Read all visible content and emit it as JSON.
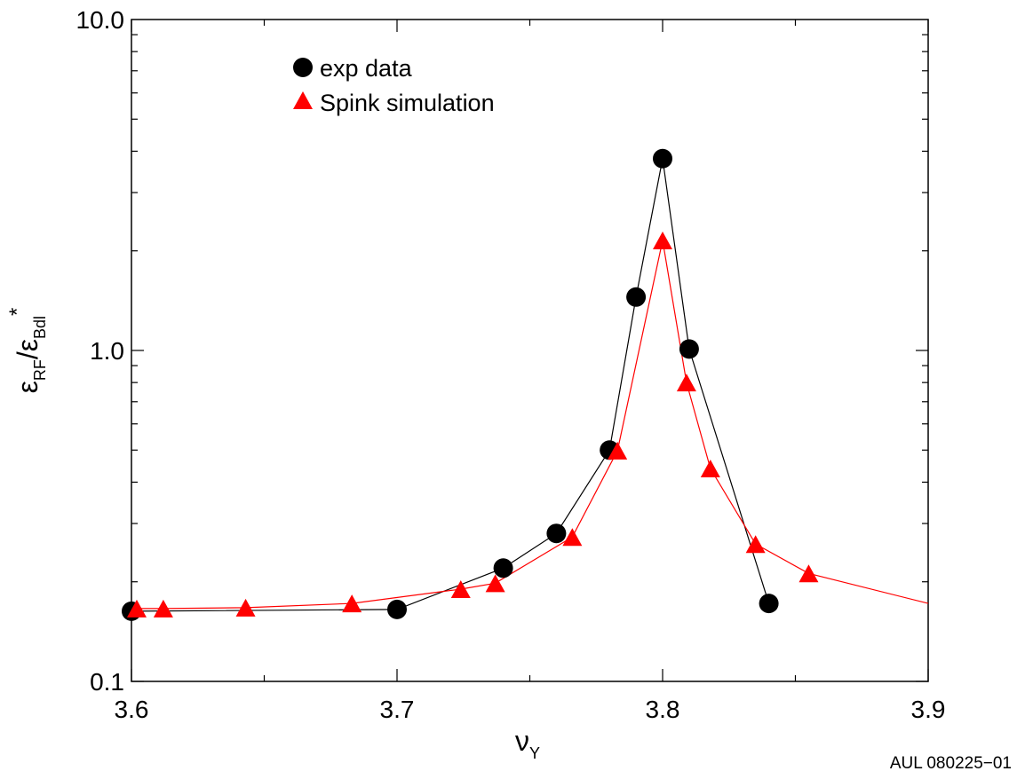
{
  "chart_data": {
    "type": "line",
    "x_axis": {
      "symbol": "ν",
      "subscript": "Y",
      "range": [
        3.6,
        3.9
      ],
      "ticks": [
        3.6,
        3.7,
        3.8,
        3.9
      ],
      "tick_labels": [
        "3.6",
        "3.7",
        "3.8",
        "3.9"
      ]
    },
    "y_axis": {
      "scale": "log",
      "range": [
        0.1,
        10.0
      ],
      "ticks": [
        0.1,
        1.0,
        10.0
      ],
      "tick_labels": [
        "0.1",
        "1.0",
        "10.0"
      ],
      "label_parts": {
        "eps1": "ε",
        "sub1": "RF",
        "slash": "/",
        "eps2": "ε",
        "sub2": "Bdl",
        "sup": "*"
      }
    },
    "legend_position": "top-left",
    "grid": false,
    "series": [
      {
        "name": "exp data",
        "marker": "circle",
        "color": "#000000",
        "x": [
          3.6,
          3.7,
          3.74,
          3.76,
          3.78,
          3.79,
          3.8,
          3.81,
          3.84
        ],
        "y": [
          0.163,
          0.165,
          0.22,
          0.28,
          0.5,
          1.45,
          3.8,
          1.01,
          0.172
        ]
      },
      {
        "name": "Spink simulation",
        "marker": "triangle",
        "color": "#ff0000",
        "x": [
          3.602,
          3.612,
          3.643,
          3.683,
          3.724,
          3.737,
          3.766,
          3.783,
          3.8,
          3.809,
          3.818,
          3.835,
          3.855,
          3.9
        ],
        "y": [
          0.166,
          0.166,
          0.167,
          0.172,
          0.19,
          0.198,
          0.273,
          0.498,
          2.15,
          0.8,
          0.44,
          0.26,
          0.212,
          0.172
        ]
      }
    ]
  },
  "figure_code": "AUL 080225−01"
}
